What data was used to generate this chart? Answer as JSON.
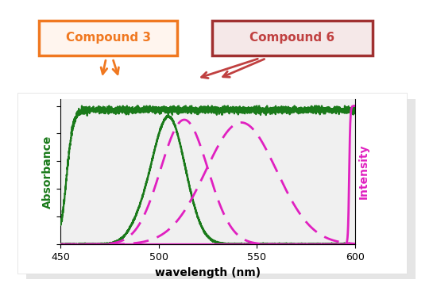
{
  "xlim": [
    450,
    600
  ],
  "ylim": [
    0,
    1.05
  ],
  "xlabel": "wavelength (nm)",
  "ylabel_left": "Absorbance",
  "ylabel_right": "Intensity",
  "xticks": [
    450,
    500,
    550,
    600
  ],
  "label3": "Compound 3",
  "label6": "Compound 6",
  "label3_text_color": "#F07820",
  "label3_border": "#F07820",
  "label6_text_color": "#C04040",
  "label6_border": "#A03030",
  "label6_fill": "#f5e8e8",
  "label3_fill": "#fff5ee",
  "green_color": "#1a7a1a",
  "magenta_color": "#e020c0",
  "background_color": "#f0f0f0",
  "fig_background": "#ffffff",
  "card_color": "#f8f8f8"
}
